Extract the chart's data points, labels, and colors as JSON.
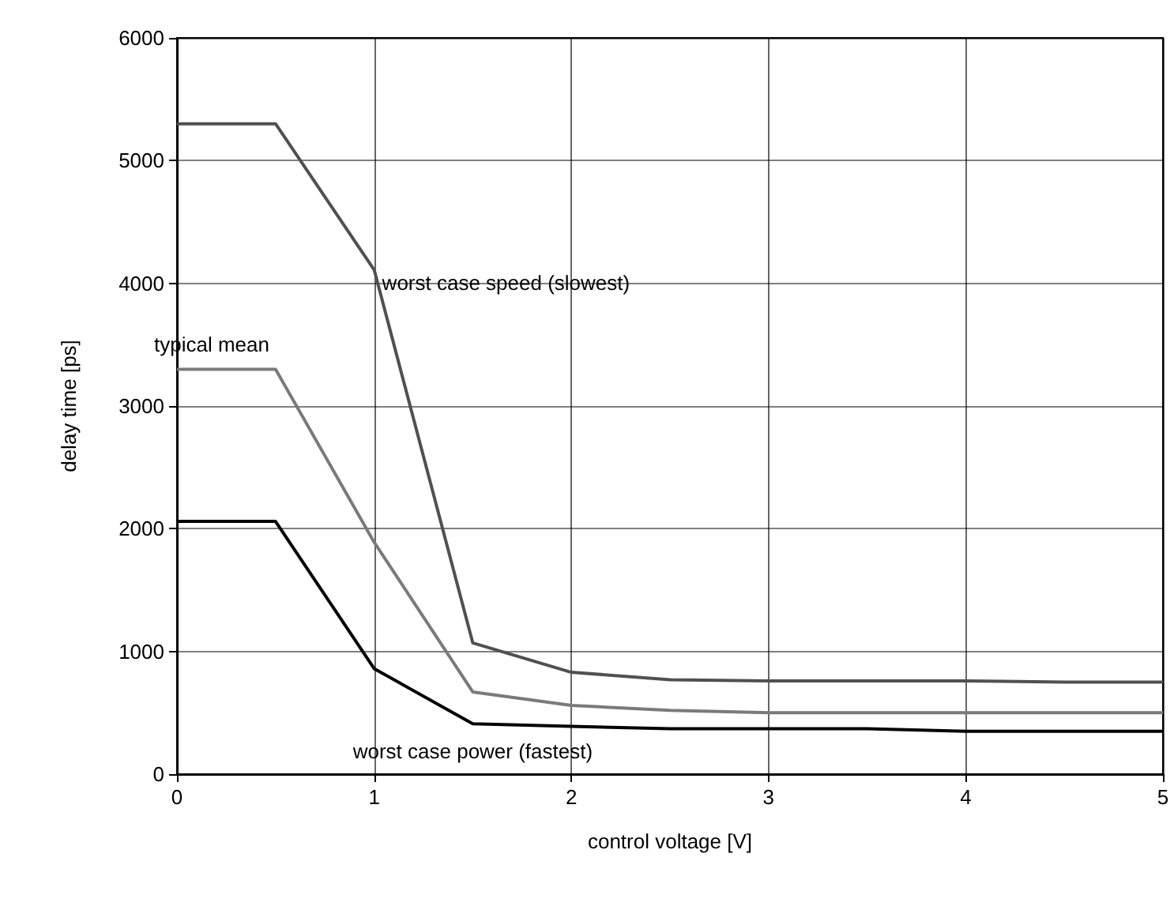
{
  "chart_data": {
    "type": "line",
    "xlabel": "control voltage [V]",
    "ylabel": "delay time [ps]",
    "xlim": [
      0,
      5
    ],
    "xticks": [
      0,
      1,
      2,
      3,
      4,
      5
    ],
    "ylim": [
      0,
      6000
    ],
    "yticks": [
      0,
      1000,
      2000,
      3000,
      4000,
      5000,
      6000
    ],
    "grid": true,
    "legend": false,
    "marker": "none",
    "line_style": "solid",
    "x": [
      0,
      0.5,
      1,
      1.5,
      2,
      2.5,
      3,
      3.5,
      4,
      4.5,
      5
    ],
    "series": [
      {
        "name": "worst case speed (slowest)",
        "color": "#505050",
        "values": [
          5300,
          5300,
          4110,
          1070,
          830,
          770,
          760,
          760,
          760,
          750,
          750
        ]
      },
      {
        "name": "typical mean",
        "color": "#7a7a7a",
        "values": [
          3300,
          3300,
          1890,
          670,
          560,
          520,
          500,
          500,
          500,
          500,
          500
        ]
      },
      {
        "name": "worst case power (fastest)",
        "color": "#000000",
        "values": [
          2060,
          2060,
          860,
          410,
          390,
          370,
          370,
          370,
          350,
          350,
          350
        ]
      }
    ]
  }
}
